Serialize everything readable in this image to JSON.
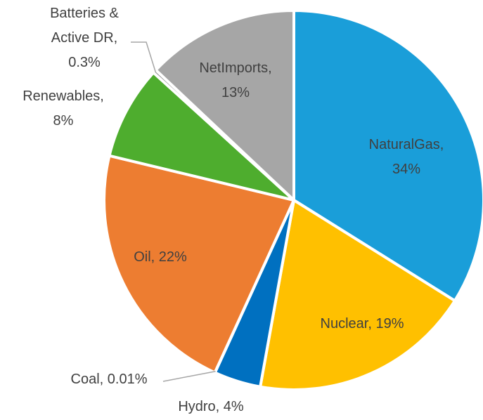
{
  "chart_data": {
    "type": "pie",
    "categories": [
      "NaturalGas",
      "Nuclear",
      "Hydro",
      "Coal",
      "Oil",
      "Renewables",
      "Batteries & Active DR",
      "NetImports"
    ],
    "values": [
      34,
      19,
      4,
      0.01,
      22,
      8,
      0.3,
      13
    ],
    "value_labels": [
      "34%",
      "19%",
      "4%",
      "0.01%",
      "22%",
      "8%",
      "0.3%",
      "13%"
    ],
    "colors": [
      "#1a9ed9",
      "#ffc000",
      "#0070c0",
      "#404040",
      "#ed7d31",
      "#4ead2e",
      "#7f7f7f",
      "#a6a6a6"
    ]
  }
}
